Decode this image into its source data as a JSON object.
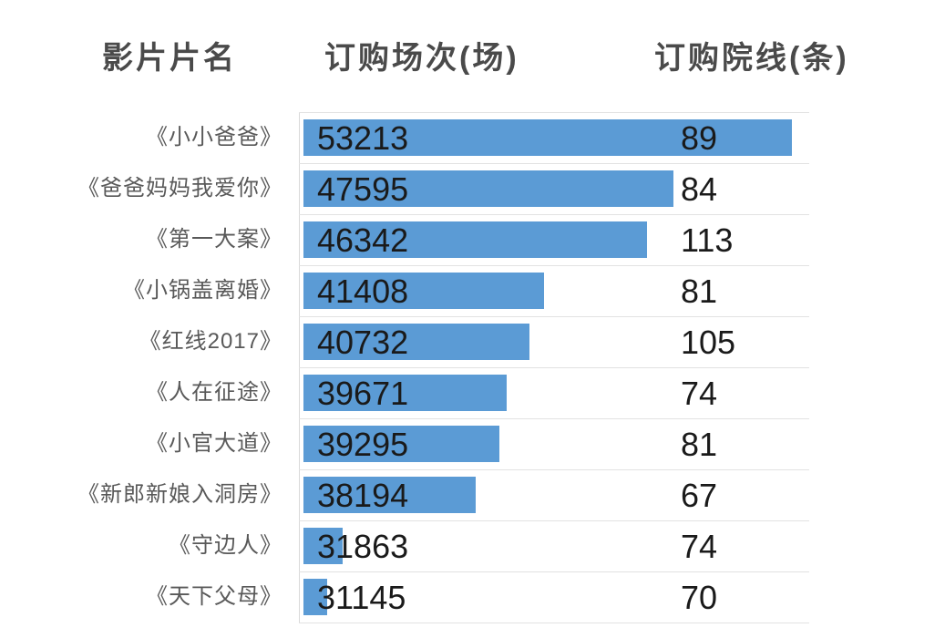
{
  "header": {
    "movie": "影片片名",
    "sessions": "订购场次(场)",
    "cinemas": "订购院线(条)"
  },
  "chart_data": {
    "type": "bar",
    "orientation": "horizontal",
    "title": "",
    "categories": [
      "《小小爸爸》",
      "《爸爸妈妈我爱你》",
      "《第一大案》",
      "《小锅盖离婚》",
      "《红线2017》",
      "《人在征途》",
      "《小官大道》",
      "《新郎新娘入洞房》",
      "《守边人》",
      "《天下父母》"
    ],
    "series": [
      {
        "name": "订购场次(场)",
        "values": [
          53213,
          47595,
          46342,
          41408,
          40732,
          39671,
          39295,
          38194,
          31863,
          31145
        ]
      },
      {
        "name": "订购院线(条)",
        "values": [
          89,
          84,
          113,
          81,
          105,
          74,
          81,
          67,
          74,
          70
        ]
      }
    ],
    "xlim": [
      30000,
      54200
    ],
    "grid": true,
    "legend": false,
    "bar_color": "#5B9BD5",
    "gridline_color": "#e2e2e2",
    "axis_line_color": "#d9d9d9",
    "value_label_color": "#1a1a1a",
    "category_label_color": "#595959",
    "header_color": "#4a4a4a"
  }
}
